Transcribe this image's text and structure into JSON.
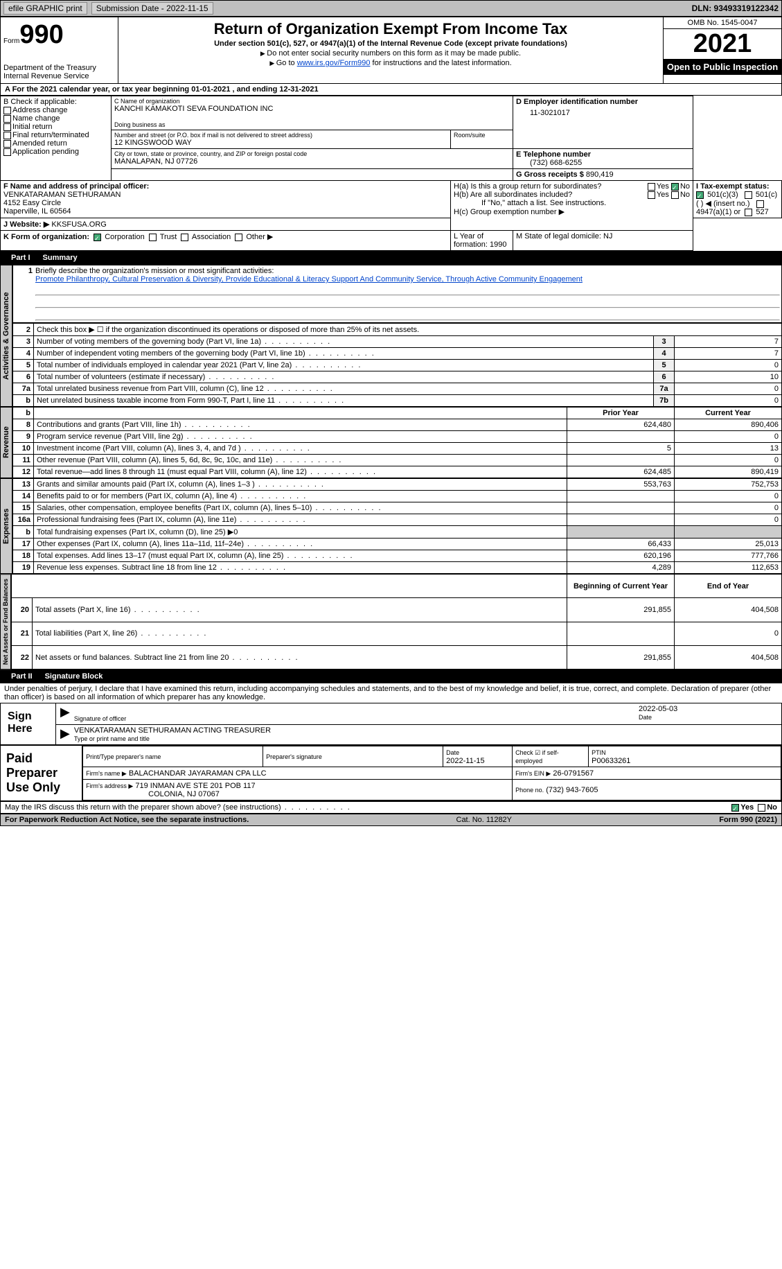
{
  "topbar": {
    "efile": "efile GRAPHIC print",
    "submission": "Submission Date - 2022-11-15",
    "dln": "DLN: 93493319122342"
  },
  "header": {
    "form_word": "Form",
    "form_number": "990",
    "title": "Return of Organization Exempt From Income Tax",
    "subtitle": "Under section 501(c), 527, or 4947(a)(1) of the Internal Revenue Code (except private foundations)",
    "note1": "Do not enter social security numbers on this form as it may be made public.",
    "note2_pre": "Go to ",
    "note2_link": "www.irs.gov/Form990",
    "note2_post": " for instructions and the latest information.",
    "dept": "Department of the Treasury",
    "irs": "Internal Revenue Service",
    "omb": "OMB No. 1545-0047",
    "year": "2021",
    "open": "Open to Public Inspection"
  },
  "rowA": "A For the 2021 calendar year, or tax year beginning 01-01-2021    , and ending 12-31-2021",
  "boxB": {
    "title": "B Check if applicable:",
    "items": [
      "Address change",
      "Name change",
      "Initial return",
      "Final return/terminated",
      "Amended return",
      "Application pending"
    ]
  },
  "boxC": {
    "lbl": "C Name of organization",
    "name": "KANCHI KAMAKOTI SEVA FOUNDATION INC",
    "dba_lbl": "Doing business as",
    "addr_lbl": "Number and street (or P.O. box if mail is not delivered to street address)",
    "room_lbl": "Room/suite",
    "addr": "12 KINGSWOOD WAY",
    "city_lbl": "City or town, state or province, country, and ZIP or foreign postal code",
    "city": "MANALAPAN, NJ  07726"
  },
  "boxD": {
    "lbl": "D Employer identification number",
    "val": "11-3021017"
  },
  "boxE": {
    "lbl": "E Telephone number",
    "val": "(732) 668-6255"
  },
  "boxG": {
    "lbl": "G Gross receipts $",
    "val": "890,419"
  },
  "boxF": {
    "lbl": "F  Name and address of principal officer:",
    "name": "VENKATARAMAN SETHURAMAN",
    "l1": "4152 Easy Circle",
    "l2": "Naperville, IL  60564"
  },
  "boxH": {
    "a": "H(a)  Is this a group return for subordinates?",
    "b": "H(b)  Are all subordinates included?",
    "bnote": "If \"No,\" attach a list. See instructions.",
    "c": "H(c)  Group exemption number ▶",
    "yes": "Yes",
    "no": "No"
  },
  "boxI": {
    "lbl": "I   Tax-exempt status:",
    "opt1": "501(c)(3)",
    "opt2": "501(c) (  ) ◀ (insert no.)",
    "opt3": "4947(a)(1) or",
    "opt4": "527"
  },
  "boxJ": {
    "lbl": "J   Website: ▶",
    "val": "KKSFUSA.ORG"
  },
  "boxK": {
    "lbl": "K Form of organization:",
    "opts": [
      "Corporation",
      "Trust",
      "Association",
      "Other ▶"
    ]
  },
  "boxL": {
    "lbl": "L Year of formation:",
    "val": "1990"
  },
  "boxM": {
    "lbl": "M State of legal domicile:",
    "val": "NJ"
  },
  "part1": {
    "hdr": "Part I",
    "title": "Summary",
    "l1": "Briefly describe the organization's mission or most significant activities:",
    "mission": "Promote Philanthropy, Cultural Preservation & Diversity, Provide Educational & Literacy Support And Community Service, Through Active Community Engagement",
    "l2": "Check this box ▶ ☐  if the organization discontinued its operations or disposed of more than 25% of its net assets.",
    "rows": [
      {
        "n": "3",
        "t": "Number of voting members of the governing body (Part VI, line 1a)",
        "box": "3",
        "v": "7"
      },
      {
        "n": "4",
        "t": "Number of independent voting members of the governing body (Part VI, line 1b)",
        "box": "4",
        "v": "7"
      },
      {
        "n": "5",
        "t": "Total number of individuals employed in calendar year 2021 (Part V, line 2a)",
        "box": "5",
        "v": "0"
      },
      {
        "n": "6",
        "t": "Total number of volunteers (estimate if necessary)",
        "box": "6",
        "v": "10"
      },
      {
        "n": "7a",
        "t": "Total unrelated business revenue from Part VIII, column (C), line 12",
        "box": "7a",
        "v": "0"
      },
      {
        "n": "b",
        "t": "Net unrelated business taxable income from Form 990-T, Part I, line 11",
        "box": "7b",
        "v": "0"
      }
    ],
    "prior": "Prior Year",
    "current": "Current Year",
    "revenue": [
      {
        "n": "8",
        "t": "Contributions and grants (Part VIII, line 1h)",
        "p": "624,480",
        "c": "890,406"
      },
      {
        "n": "9",
        "t": "Program service revenue (Part VIII, line 2g)",
        "p": "",
        "c": "0"
      },
      {
        "n": "10",
        "t": "Investment income (Part VIII, column (A), lines 3, 4, and 7d )",
        "p": "5",
        "c": "13"
      },
      {
        "n": "11",
        "t": "Other revenue (Part VIII, column (A), lines 5, 6d, 8c, 9c, 10c, and 11e)",
        "p": "",
        "c": "0"
      },
      {
        "n": "12",
        "t": "Total revenue—add lines 8 through 11 (must equal Part VIII, column (A), line 12)",
        "p": "624,485",
        "c": "890,419"
      }
    ],
    "expenses": [
      {
        "n": "13",
        "t": "Grants and similar amounts paid (Part IX, column (A), lines 1–3 )",
        "p": "553,763",
        "c": "752,753"
      },
      {
        "n": "14",
        "t": "Benefits paid to or for members (Part IX, column (A), line 4)",
        "p": "",
        "c": "0"
      },
      {
        "n": "15",
        "t": "Salaries, other compensation, employee benefits (Part IX, column (A), lines 5–10)",
        "p": "",
        "c": "0"
      },
      {
        "n": "16a",
        "t": "Professional fundraising fees (Part IX, column (A), line 11e)",
        "p": "",
        "c": "0"
      },
      {
        "n": "b",
        "t": "Total fundraising expenses (Part IX, column (D), line 25) ▶0",
        "shade": true
      },
      {
        "n": "17",
        "t": "Other expenses (Part IX, column (A), lines 11a–11d, 11f–24e)",
        "p": "66,433",
        "c": "25,013"
      },
      {
        "n": "18",
        "t": "Total expenses. Add lines 13–17 (must equal Part IX, column (A), line 25)",
        "p": "620,196",
        "c": "777,766"
      },
      {
        "n": "19",
        "t": "Revenue less expenses. Subtract line 18 from line 12",
        "p": "4,289",
        "c": "112,653"
      }
    ],
    "boy": "Beginning of Current Year",
    "eoy": "End of Year",
    "assets": [
      {
        "n": "20",
        "t": "Total assets (Part X, line 16)",
        "p": "291,855",
        "c": "404,508"
      },
      {
        "n": "21",
        "t": "Total liabilities (Part X, line 26)",
        "p": "",
        "c": "0"
      },
      {
        "n": "22",
        "t": "Net assets or fund balances. Subtract line 21 from line 20",
        "p": "291,855",
        "c": "404,508"
      }
    ],
    "tabs": {
      "act": "Activities & Governance",
      "rev": "Revenue",
      "exp": "Expenses",
      "net": "Net Assets or Fund Balances"
    }
  },
  "part2": {
    "hdr": "Part II",
    "title": "Signature Block",
    "decl": "Under penalties of perjury, I declare that I have examined this return, including accompanying schedules and statements, and to the best of my knowledge and belief, it is true, correct, and complete. Declaration of preparer (other than officer) is based on all information of which preparer has any knowledge.",
    "sign_here": "Sign Here",
    "sig_of": "Signature of officer",
    "date": "Date",
    "sig_date": "2022-05-03",
    "officer": "VENKATARAMAN SETHURAMAN  ACTING TREASURER",
    "type_name": "Type or print name and title",
    "prep": "Paid Preparer Use Only",
    "prep_name_lbl": "Print/Type preparer's name",
    "prep_sig_lbl": "Preparer's signature",
    "prep_date_lbl": "Date",
    "prep_date": "2022-11-15",
    "check_lbl": "Check ☑ if self-employed",
    "ptin_lbl": "PTIN",
    "ptin": "P00633261",
    "firm_name_lbl": "Firm's name    ▶",
    "firm_name": "BALACHANDAR JAYARAMAN CPA LLC",
    "firm_ein_lbl": "Firm's EIN ▶",
    "firm_ein": "26-0791567",
    "firm_addr_lbl": "Firm's address ▶",
    "firm_addr1": "719 INMAN AVE STE 201 POB 117",
    "firm_addr2": "COLONIA, NJ  07067",
    "phone_lbl": "Phone no.",
    "phone": "(732) 943-7605",
    "discuss": "May the IRS discuss this return with the preparer shown above? (see instructions)"
  },
  "footer": {
    "l": "For Paperwork Reduction Act Notice, see the separate instructions.",
    "c": "Cat. No. 11282Y",
    "r": "Form 990 (2021)"
  }
}
